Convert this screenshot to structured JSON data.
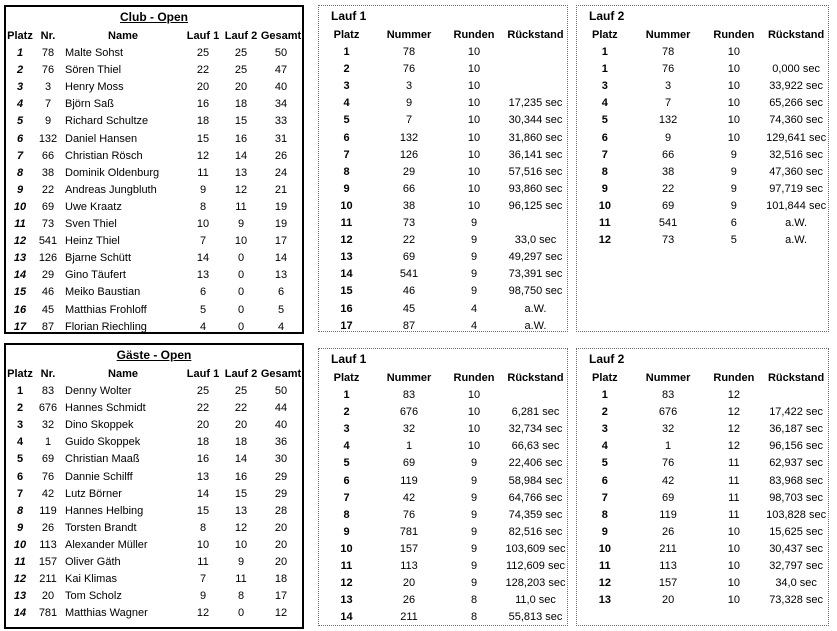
{
  "tables": {
    "club_standings": {
      "title": "Club - Open",
      "headers": [
        "Platz",
        "Nr.",
        "Name",
        "Lauf 1",
        "Lauf 2",
        "Gesamt"
      ],
      "italic_platz_from": 1,
      "rows": [
        [
          "1",
          "78",
          "Malte Sohst",
          "25",
          "25",
          "50"
        ],
        [
          "2",
          "76",
          "Sören Thiel",
          "22",
          "25",
          "47"
        ],
        [
          "3",
          "3",
          "Henry Moss",
          "20",
          "20",
          "40"
        ],
        [
          "4",
          "7",
          "Björn Saß",
          "16",
          "18",
          "34"
        ],
        [
          "5",
          "9",
          "Richard Schultze",
          "18",
          "15",
          "33"
        ],
        [
          "6",
          "132",
          "Daniel Hansen",
          "15",
          "16",
          "31"
        ],
        [
          "7",
          "66",
          "Christian Rösch",
          "12",
          "14",
          "26"
        ],
        [
          "8",
          "38",
          "Dominik Oldenburg",
          "11",
          "13",
          "24"
        ],
        [
          "9",
          "22",
          "Andreas Jungbluth",
          "9",
          "12",
          "21"
        ],
        [
          "10",
          "69",
          "Uwe Kraatz",
          "8",
          "11",
          "19"
        ],
        [
          "11",
          "73",
          "Sven Thiel",
          "10",
          "9",
          "19"
        ],
        [
          "12",
          "541",
          "Heinz Thiel",
          "7",
          "10",
          "17"
        ],
        [
          "13",
          "126",
          "Bjarne Schütt",
          "14",
          "0",
          "14"
        ],
        [
          "14",
          "29",
          "Gino Täufert",
          "13",
          "0",
          "13"
        ],
        [
          "15",
          "46",
          "Meiko Baustian",
          "6",
          "0",
          "6"
        ],
        [
          "16",
          "45",
          "Matthias Frohloff",
          "5",
          "0",
          "5"
        ],
        [
          "17",
          "87",
          "Florian Riechling",
          "4",
          "0",
          "4"
        ]
      ]
    },
    "club_lauf1": {
      "title": "Lauf 1",
      "headers": [
        "Platz",
        "Nummer",
        "Runden",
        "Rückstand"
      ],
      "rows": [
        [
          "1",
          "78",
          "10",
          ""
        ],
        [
          "2",
          "76",
          "10",
          ""
        ],
        [
          "3",
          "3",
          "10",
          ""
        ],
        [
          "4",
          "9",
          "10",
          "17,235 sec"
        ],
        [
          "5",
          "7",
          "10",
          "30,344 sec"
        ],
        [
          "6",
          "132",
          "10",
          "31,860 sec"
        ],
        [
          "7",
          "126",
          "10",
          "36,141 sec"
        ],
        [
          "8",
          "29",
          "10",
          "57,516 sec"
        ],
        [
          "9",
          "66",
          "10",
          "93,860 sec"
        ],
        [
          "10",
          "38",
          "10",
          "96,125 sec"
        ],
        [
          "11",
          "73",
          "9",
          ""
        ],
        [
          "12",
          "22",
          "9",
          "33,0 sec"
        ],
        [
          "13",
          "69",
          "9",
          "49,297 sec"
        ],
        [
          "14",
          "541",
          "9",
          "73,391 sec"
        ],
        [
          "15",
          "46",
          "9",
          "98,750 sec"
        ],
        [
          "16",
          "45",
          "4",
          "a.W."
        ],
        [
          "17",
          "87",
          "4",
          "a.W."
        ]
      ]
    },
    "club_lauf2": {
      "title": "Lauf 2",
      "headers": [
        "Platz",
        "Nummer",
        "Runden",
        "Rückstand"
      ],
      "rows": [
        [
          "1",
          "78",
          "10",
          ""
        ],
        [
          "1",
          "76",
          "10",
          "0,000 sec"
        ],
        [
          "3",
          "3",
          "10",
          "33,922 sec"
        ],
        [
          "4",
          "7",
          "10",
          "65,266 sec"
        ],
        [
          "5",
          "132",
          "10",
          "74,360 sec"
        ],
        [
          "6",
          "9",
          "10",
          "129,641 sec"
        ],
        [
          "7",
          "66",
          "9",
          "32,516 sec"
        ],
        [
          "8",
          "38",
          "9",
          "47,360 sec"
        ],
        [
          "9",
          "22",
          "9",
          "97,719 sec"
        ],
        [
          "10",
          "69",
          "9",
          "101,844 sec"
        ],
        [
          "11",
          "541",
          "6",
          "a.W."
        ],
        [
          "12",
          "73",
          "5",
          "a.W."
        ]
      ]
    },
    "gaeste_standings": {
      "title": "Gäste - Open",
      "headers": [
        "Platz",
        "Nr.",
        "Name",
        "Lauf 1",
        "Lauf 2",
        "Gesamt"
      ],
      "italic_platz_from": 8,
      "rows": [
        [
          "1",
          "83",
          "Denny Wolter",
          "25",
          "25",
          "50"
        ],
        [
          "2",
          "676",
          "Hannes Schmidt",
          "22",
          "22",
          "44"
        ],
        [
          "3",
          "32",
          "Dino Skoppek",
          "20",
          "20",
          "40"
        ],
        [
          "4",
          "1",
          "Guido Skoppek",
          "18",
          "18",
          "36"
        ],
        [
          "5",
          "69",
          "Christian Maaß",
          "16",
          "14",
          "30"
        ],
        [
          "6",
          "76",
          "Dannie Schilff",
          "13",
          "16",
          "29"
        ],
        [
          "7",
          "42",
          "Lutz Börner",
          "14",
          "15",
          "29"
        ],
        [
          "8",
          "119",
          "Hannes Helbing",
          "15",
          "13",
          "28"
        ],
        [
          "9",
          "26",
          "Torsten Brandt",
          "8",
          "12",
          "20"
        ],
        [
          "10",
          "113",
          "Alexander Müller",
          "10",
          "10",
          "20"
        ],
        [
          "11",
          "157",
          "Oliver Gäth",
          "11",
          "9",
          "20"
        ],
        [
          "12",
          "211",
          "Kai Klimas",
          "7",
          "11",
          "18"
        ],
        [
          "13",
          "20",
          "Tom Scholz",
          "9",
          "8",
          "17"
        ],
        [
          "14",
          "781",
          "Matthias Wagner",
          "12",
          "0",
          "12"
        ]
      ]
    },
    "gaeste_lauf1": {
      "title": "Lauf 1",
      "headers": [
        "Platz",
        "Nummer",
        "Runden",
        "Rückstand"
      ],
      "rows": [
        [
          "1",
          "83",
          "10",
          ""
        ],
        [
          "2",
          "676",
          "10",
          "6,281 sec"
        ],
        [
          "3",
          "32",
          "10",
          "32,734 sec"
        ],
        [
          "4",
          "1",
          "10",
          "66,63 sec"
        ],
        [
          "5",
          "69",
          "9",
          "22,406 sec"
        ],
        [
          "6",
          "119",
          "9",
          "58,984 sec"
        ],
        [
          "7",
          "42",
          "9",
          "64,766 sec"
        ],
        [
          "8",
          "76",
          "9",
          "74,359 sec"
        ],
        [
          "9",
          "781",
          "9",
          "82,516 sec"
        ],
        [
          "10",
          "157",
          "9",
          "103,609 sec"
        ],
        [
          "11",
          "113",
          "9",
          "112,609 sec"
        ],
        [
          "12",
          "20",
          "9",
          "128,203 sec"
        ],
        [
          "13",
          "26",
          "8",
          "11,0 sec"
        ],
        [
          "14",
          "211",
          "8",
          "55,813 sec"
        ]
      ]
    },
    "gaeste_lauf2": {
      "title": "Lauf 2",
      "headers": [
        "Platz",
        "Nummer",
        "Runden",
        "Rückstand"
      ],
      "rows": [
        [
          "1",
          "83",
          "12",
          ""
        ],
        [
          "2",
          "676",
          "12",
          "17,422 sec"
        ],
        [
          "3",
          "32",
          "12",
          "36,187 sec"
        ],
        [
          "4",
          "1",
          "12",
          "96,156 sec"
        ],
        [
          "5",
          "76",
          "11",
          "62,937 sec"
        ],
        [
          "6",
          "42",
          "11",
          "83,968 sec"
        ],
        [
          "7",
          "69",
          "11",
          "98,703 sec"
        ],
        [
          "8",
          "119",
          "11",
          "103,828 sec"
        ],
        [
          "9",
          "26",
          "10",
          "15,625 sec"
        ],
        [
          "10",
          "211",
          "10",
          "30,437 sec"
        ],
        [
          "11",
          "113",
          "10",
          "32,797 sec"
        ],
        [
          "12",
          "157",
          "10",
          "34,0 sec"
        ],
        [
          "13",
          "20",
          "10",
          "73,328 sec"
        ]
      ]
    }
  }
}
